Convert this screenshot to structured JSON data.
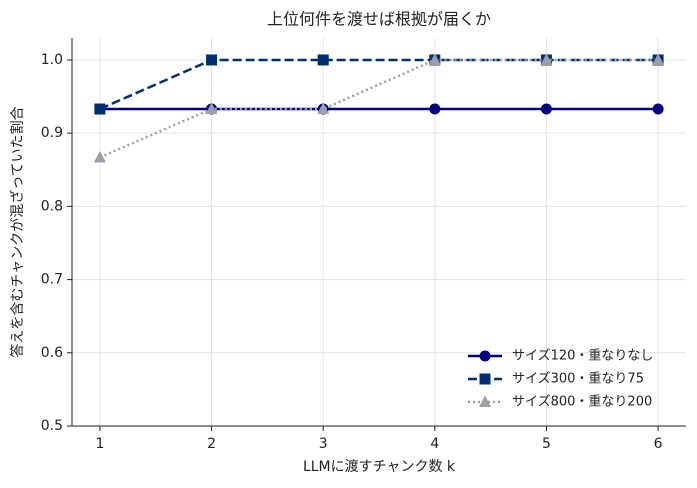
{
  "chart_data": {
    "type": "line",
    "title": "上位何件を渡せば根拠が届くか",
    "xlabel": "LLMに渡すチャンク数 k",
    "ylabel": "答えを含むチャンクが混ざっていた割合",
    "x": [
      1,
      2,
      3,
      4,
      5,
      6
    ],
    "series": [
      {
        "name": "サイズ120・重なりなし",
        "color": "#000080",
        "dash": "solid",
        "marker": "circle",
        "values": [
          0.933,
          0.933,
          0.933,
          0.933,
          0.933,
          0.933
        ]
      },
      {
        "name": "サイズ300・重なり75",
        "color": "#003070",
        "dash": "dashed",
        "marker": "square",
        "values": [
          0.933,
          1.0,
          1.0,
          1.0,
          1.0,
          1.0
        ]
      },
      {
        "name": "サイズ800・重なり200",
        "color": "#9aa0ab",
        "dash": "dotted",
        "marker": "triangle",
        "values": [
          0.867,
          0.933,
          0.933,
          1.0,
          1.0,
          1.0
        ]
      }
    ],
    "xlim": [
      0.75,
      6.25
    ],
    "xticks": [
      1,
      2,
      3,
      4,
      5,
      6
    ],
    "ylim": [
      0.5,
      1.03
    ],
    "yticks": [
      0.5,
      0.6,
      0.7,
      0.8,
      0.9,
      {
        "value": 1,
        "label": "1.0"
      }
    ],
    "grid": true,
    "legend": "lower right"
  }
}
